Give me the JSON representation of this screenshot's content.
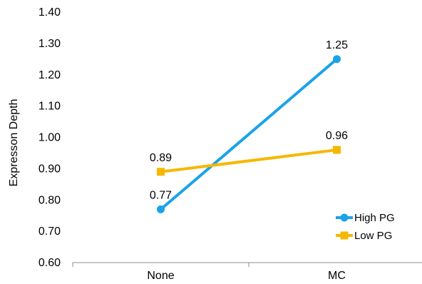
{
  "chart_data": {
    "type": "line",
    "title": "",
    "xlabel": "",
    "ylabel": "Expresson Depth",
    "categories": [
      "None",
      "MC"
    ],
    "ylim": [
      0.6,
      1.4
    ],
    "y_tick_labels": [
      "0.60",
      "0.70",
      "0.80",
      "0.90",
      "1.00",
      "1.10",
      "1.20",
      "1.30",
      "1.40"
    ],
    "grid": false,
    "legend_position": "bottom-right",
    "series": [
      {
        "name": "High PG",
        "values": [
          0.77,
          1.25
        ],
        "labels": [
          "0.77",
          "1.25"
        ],
        "color": "#1AA3E8",
        "marker": "circle"
      },
      {
        "name": "Low PG",
        "values": [
          0.89,
          0.96
        ],
        "labels": [
          "0.89",
          "0.96"
        ],
        "color": "#F5B800",
        "marker": "square"
      }
    ]
  }
}
